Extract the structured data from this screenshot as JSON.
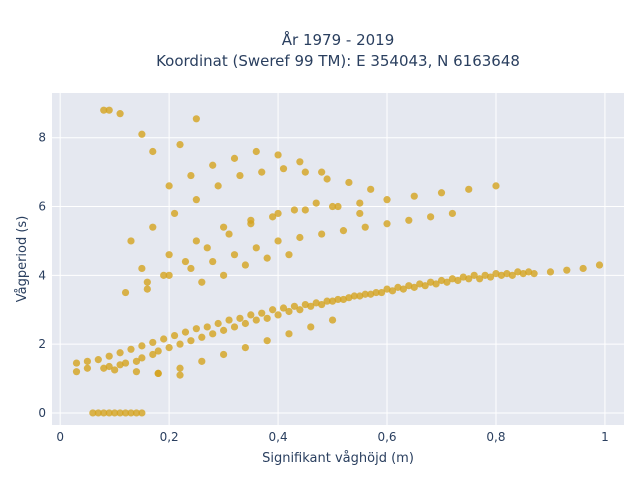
{
  "chart_data": {
    "type": "scatter",
    "title_line1": "År 1979 - 2019",
    "title_line2": "Koordinat (Sweref 99 TM): E 354043, N 6163648",
    "xlabel": "Signifikant våghöjd (m)",
    "ylabel": "Vågperiod (s)",
    "xlim": [
      -0.015,
      1.035
    ],
    "ylim": [
      -0.35,
      9.3
    ],
    "x_ticks": [
      0,
      0.2,
      0.4,
      0.6,
      0.8,
      1
    ],
    "x_tick_labels": [
      "0",
      "0,2",
      "0,4",
      "0,6",
      "0,8",
      "1"
    ],
    "y_ticks": [
      0,
      2,
      4,
      6,
      8
    ],
    "y_tick_labels": [
      "0",
      "2",
      "4",
      "6",
      "8"
    ],
    "grid": true,
    "marker_color": "#d4a31e",
    "background_color": "#e5e8f0",
    "series": [
      {
        "x": [
          0.03,
          0.05,
          0.07,
          0.09,
          0.11,
          0.13,
          0.15,
          0.17,
          0.19,
          0.21,
          0.23,
          0.25,
          0.27,
          0.29,
          0.31,
          0.33,
          0.35,
          0.37,
          0.39,
          0.41,
          0.43,
          0.45,
          0.47,
          0.49,
          0.51,
          0.53,
          0.55,
          0.57,
          0.59,
          0.61,
          0.63,
          0.65,
          0.67,
          0.69,
          0.71,
          0.73,
          0.75,
          0.77,
          0.79,
          0.81,
          0.83,
          0.85,
          0.87,
          0.9,
          0.93,
          0.96,
          0.99,
          0.06,
          0.07,
          0.08,
          0.09,
          0.1,
          0.11,
          0.12,
          0.13,
          0.14,
          0.15,
          0.08,
          0.09,
          0.11,
          0.12,
          0.14,
          0.15,
          0.17,
          0.18,
          0.2,
          0.22,
          0.24,
          0.26,
          0.28,
          0.3,
          0.32,
          0.34,
          0.36,
          0.38,
          0.4,
          0.42,
          0.44,
          0.46,
          0.48,
          0.5,
          0.52,
          0.54,
          0.56,
          0.58,
          0.6,
          0.62,
          0.64,
          0.66,
          0.68,
          0.7,
          0.72,
          0.74,
          0.76,
          0.78,
          0.8,
          0.82,
          0.84,
          0.86,
          0.18,
          0.22,
          0.26,
          0.3,
          0.34,
          0.38,
          0.42,
          0.46,
          0.5,
          0.12,
          0.16,
          0.2,
          0.24,
          0.28,
          0.32,
          0.36,
          0.4,
          0.44,
          0.48,
          0.52,
          0.56,
          0.6,
          0.64,
          0.68,
          0.72,
          0.15,
          0.2,
          0.25,
          0.3,
          0.35,
          0.4,
          0.45,
          0.5,
          0.55,
          0.6,
          0.65,
          0.7,
          0.75,
          0.8,
          0.13,
          0.17,
          0.21,
          0.25,
          0.29,
          0.33,
          0.37,
          0.41,
          0.45,
          0.49,
          0.53,
          0.57,
          0.16,
          0.19,
          0.23,
          0.27,
          0.31,
          0.35,
          0.39,
          0.43,
          0.47,
          0.51,
          0.55,
          0.2,
          0.24,
          0.28,
          0.32,
          0.36,
          0.4,
          0.44,
          0.48,
          0.26,
          0.3,
          0.34,
          0.38,
          0.42,
          0.17,
          0.22,
          0.08,
          0.09,
          0.11,
          0.15,
          0.25,
          0.03,
          0.05,
          0.1,
          0.14,
          0.18,
          0.22
        ],
        "y": [
          1.45,
          1.5,
          1.55,
          1.65,
          1.75,
          1.85,
          1.95,
          2.05,
          2.15,
          2.25,
          2.35,
          2.45,
          2.5,
          2.6,
          2.7,
          2.75,
          2.85,
          2.9,
          3.0,
          3.05,
          3.1,
          3.15,
          3.2,
          3.25,
          3.3,
          3.35,
          3.4,
          3.45,
          3.5,
          3.55,
          3.6,
          3.65,
          3.7,
          3.75,
          3.8,
          3.85,
          3.9,
          3.9,
          3.95,
          4.0,
          4.0,
          4.05,
          4.05,
          4.1,
          4.15,
          4.2,
          4.3,
          0.0,
          0.0,
          0.0,
          0.0,
          0.0,
          0.0,
          0.0,
          0.0,
          0.0,
          0.0,
          1.3,
          1.35,
          1.4,
          1.45,
          1.5,
          1.6,
          1.7,
          1.8,
          1.9,
          2.0,
          2.1,
          2.2,
          2.3,
          2.4,
          2.5,
          2.6,
          2.7,
          2.75,
          2.85,
          2.95,
          3.0,
          3.1,
          3.15,
          3.25,
          3.3,
          3.4,
          3.45,
          3.5,
          3.6,
          3.65,
          3.7,
          3.75,
          3.8,
          3.85,
          3.9,
          3.95,
          4.0,
          4.0,
          4.05,
          4.05,
          4.1,
          4.1,
          1.15,
          1.3,
          1.5,
          1.7,
          1.9,
          2.1,
          2.3,
          2.5,
          2.7,
          3.5,
          3.8,
          4.0,
          4.2,
          4.4,
          4.6,
          4.8,
          5.0,
          5.1,
          5.2,
          5.3,
          5.4,
          5.5,
          5.6,
          5.7,
          5.8,
          4.2,
          4.6,
          5.0,
          5.4,
          5.6,
          5.8,
          5.9,
          6.0,
          6.1,
          6.2,
          6.3,
          6.4,
          6.5,
          6.6,
          5.0,
          5.4,
          5.8,
          6.2,
          6.6,
          6.9,
          7.0,
          7.1,
          7.0,
          6.8,
          6.7,
          6.5,
          3.6,
          4.0,
          4.4,
          4.8,
          5.2,
          5.5,
          5.7,
          5.9,
          6.1,
          6.0,
          5.8,
          6.6,
          6.9,
          7.2,
          7.4,
          7.6,
          7.5,
          7.3,
          7.0,
          3.8,
          4.0,
          4.3,
          4.5,
          4.6,
          7.6,
          7.8,
          8.8,
          8.8,
          8.7,
          8.1,
          8.55,
          1.2,
          1.3,
          1.25,
          1.2,
          1.15,
          1.1
        ]
      }
    ]
  }
}
